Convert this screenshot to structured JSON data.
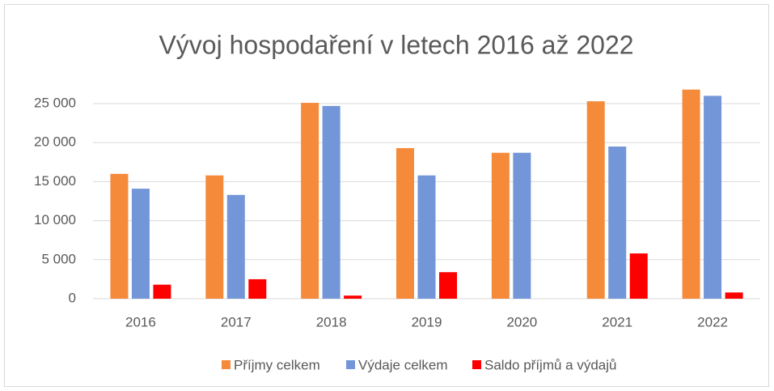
{
  "chart_data": {
    "type": "bar",
    "title": "Vývoj hospodaření v letech 2016 až 2022",
    "categories": [
      "2016",
      "2017",
      "2018",
      "2019",
      "2020",
      "2021",
      "2022"
    ],
    "series": [
      {
        "name": "Příjmy celkem",
        "color": "#f58a3b",
        "values": [
          16000,
          15800,
          25100,
          19300,
          18700,
          25300,
          26800
        ]
      },
      {
        "name": "Výdaje celkem",
        "color": "#7396d8",
        "values": [
          14100,
          13300,
          24700,
          15800,
          18700,
          19500,
          26000
        ]
      },
      {
        "name": "Saldo příjmů a výdajů",
        "color": "#ff0000",
        "values": [
          1800,
          2500,
          400,
          3400,
          0,
          5800,
          800
        ]
      }
    ],
    "ylim": [
      0,
      30000
    ],
    "yticks": [
      {
        "value": 0,
        "label": "0"
      },
      {
        "value": 5000,
        "label": "5 000"
      },
      {
        "value": 10000,
        "label": "10 000"
      },
      {
        "value": 15000,
        "label": "15 000"
      },
      {
        "value": 20000,
        "label": "20 000"
      },
      {
        "value": 25000,
        "label": "25 000"
      }
    ],
    "grid": true,
    "legend": "bottom"
  }
}
